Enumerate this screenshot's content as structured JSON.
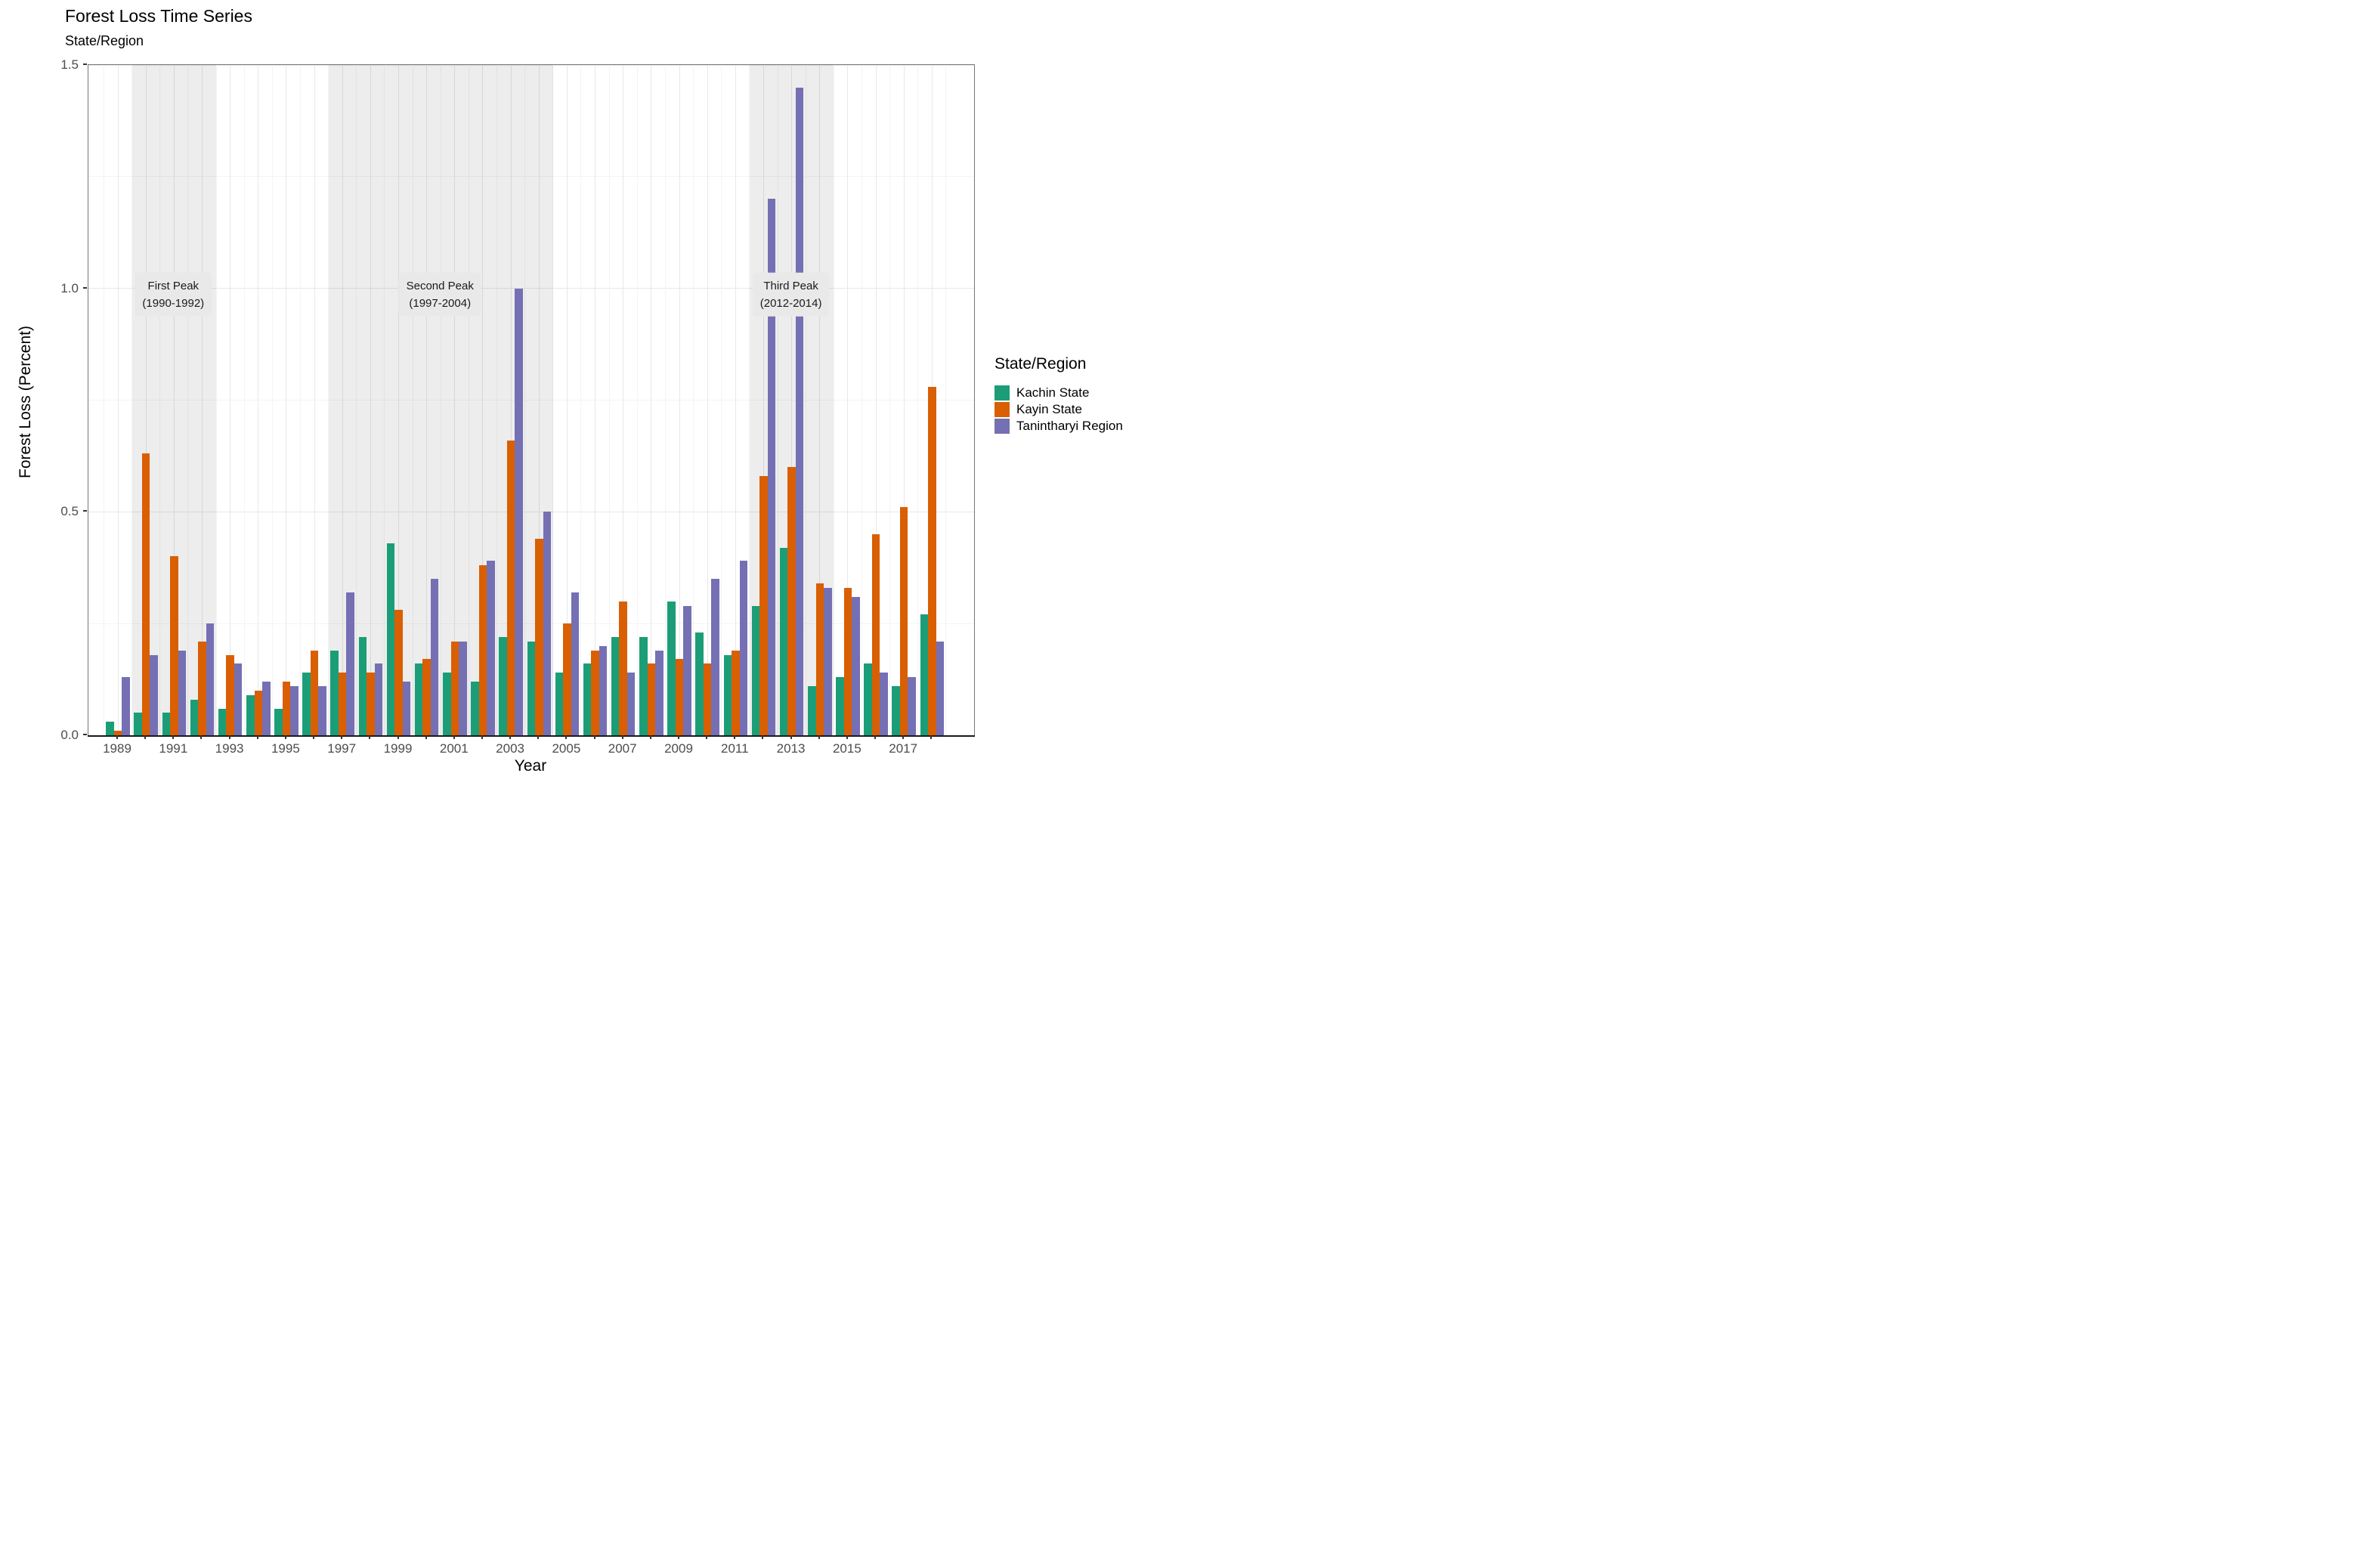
{
  "title": "Forest Loss Time Series",
  "subtitle": "State/Region",
  "axes": {
    "x_label": "Year",
    "y_label": "Forest Loss (Percent)",
    "y_tick_labels": [
      "0.0",
      "0.5",
      "1.0",
      "1.5"
    ],
    "y_tick_values": [
      0,
      0.5,
      1.0,
      1.5
    ],
    "x_tick_label_years": [
      1989,
      1991,
      1993,
      1995,
      1997,
      1999,
      2001,
      2003,
      2005,
      2007,
      2009,
      2011,
      2013,
      2015,
      2017
    ]
  },
  "legend": {
    "title": "State/Region",
    "entries": [
      {
        "label": "Kachin State",
        "color": "#1b9e77"
      },
      {
        "label": "Kayin State",
        "color": "#d95f02"
      },
      {
        "label": "Tanintharyi Region",
        "color": "#7570b3"
      }
    ]
  },
  "annotations": [
    {
      "line1": "First Peak",
      "line2": "(1990-1992)",
      "start_year": 1990,
      "end_year": 1992
    },
    {
      "line1": "Second Peak",
      "line2": "(1997-2004)",
      "start_year": 1997,
      "end_year": 2004
    },
    {
      "line1": "Third Peak",
      "line2": "(2012-2014)",
      "start_year": 2012,
      "end_year": 2014
    }
  ],
  "chart_data": {
    "type": "bar",
    "title": "Forest Loss Time Series",
    "subtitle": "State/Region",
    "xlabel": "Year",
    "ylabel": "Forest Loss (Percent)",
    "ylim": [
      0,
      1.5
    ],
    "grid": "on",
    "legend_position": "right",
    "x_years": [
      1989,
      1990,
      1991,
      1992,
      1993,
      1994,
      1995,
      1996,
      1997,
      1998,
      1999,
      2000,
      2001,
      2002,
      2003,
      2004,
      2005,
      2006,
      2007,
      2008,
      2009,
      2010,
      2011,
      2012,
      2013,
      2014,
      2015,
      2016,
      2017,
      2018
    ],
    "series": [
      {
        "name": "Kachin State",
        "color": "#1b9e77",
        "values": [
          0.03,
          0.05,
          0.05,
          0.08,
          0.06,
          0.09,
          0.06,
          0.14,
          0.19,
          0.22,
          0.43,
          0.16,
          0.14,
          0.12,
          0.22,
          0.21,
          0.14,
          0.16,
          0.22,
          0.22,
          0.3,
          0.23,
          0.18,
          0.29,
          0.42,
          0.11,
          0.13,
          0.16,
          0.11,
          0.27
        ]
      },
      {
        "name": "Kayin State",
        "color": "#d95f02",
        "values": [
          0.01,
          0.63,
          0.4,
          0.21,
          0.18,
          0.1,
          0.12,
          0.19,
          0.14,
          0.14,
          0.28,
          0.17,
          0.21,
          0.38,
          0.66,
          0.44,
          0.25,
          0.19,
          0.3,
          0.16,
          0.17,
          0.16,
          0.19,
          0.58,
          0.6,
          0.34,
          0.33,
          0.45,
          0.51,
          0.78
        ]
      },
      {
        "name": "Tanintharyi Region",
        "color": "#7570b3",
        "values": [
          0.13,
          0.18,
          0.19,
          0.25,
          0.16,
          0.12,
          0.11,
          0.11,
          0.32,
          0.16,
          0.12,
          0.35,
          0.21,
          0.39,
          1.0,
          0.5,
          0.32,
          0.2,
          0.14,
          0.19,
          0.29,
          0.35,
          0.39,
          1.2,
          1.45,
          0.33,
          0.31,
          0.14,
          0.13,
          0.21
        ]
      }
    ]
  }
}
